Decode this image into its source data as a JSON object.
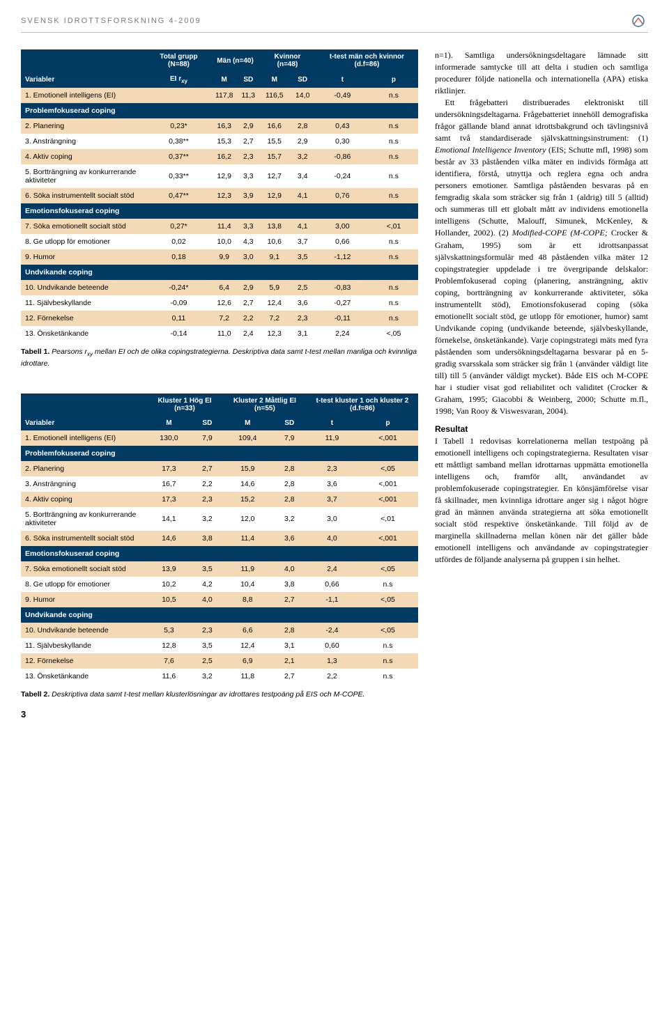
{
  "header": {
    "title": "SVENSK IDROTTSFORSKNING 4-2009"
  },
  "colors": {
    "header_bg": "#003a63",
    "alt_row": "#f3d9b6",
    "text": "#000000",
    "header_text_grey": "#777777"
  },
  "table1": {
    "top_headers": [
      "Total grupp (N=88)",
      "Män (n=40)",
      "Kvinnor (n=48)",
      "t-test män och kvinnor (d.f=86)"
    ],
    "var_header": "Variabler",
    "sub_headers": [
      "EI r",
      "M",
      "SD",
      "M",
      "SD",
      "t",
      "p"
    ],
    "sub_ei": "xy",
    "rows": [
      {
        "type": "data",
        "label": "1. Emotionell intelligens (EI)",
        "cells": [
          "",
          "117,8",
          "11,3",
          "116,5",
          "14,0",
          "-0,49",
          "n.s"
        ]
      },
      {
        "type": "section",
        "label": "Problemfokuserad coping"
      },
      {
        "type": "data",
        "label": "2. Planering",
        "cells": [
          "0,23*",
          "16,3",
          "2,9",
          "16,6",
          "2,8",
          "0,43",
          "n.s"
        ]
      },
      {
        "type": "data",
        "label": "3. Ansträngning",
        "cells": [
          "0,38**",
          "15,3",
          "2,7",
          "15,5",
          "2,9",
          "0,30",
          "n.s"
        ]
      },
      {
        "type": "data",
        "label": "4. Aktiv coping",
        "cells": [
          "0,37**",
          "16,2",
          "2,3",
          "15,7",
          "3,2",
          "-0,86",
          "n.s"
        ]
      },
      {
        "type": "data",
        "label": "5. Bortträngning av konkurrerande aktiviteter",
        "cells": [
          "0,33**",
          "12,9",
          "3,3",
          "12,7",
          "3,4",
          "-0,24",
          "n.s"
        ]
      },
      {
        "type": "data",
        "label": "6. Söka instrumentellt socialt stöd",
        "cells": [
          "0,47**",
          "12,3",
          "3,9",
          "12,9",
          "4,1",
          "0,76",
          "n.s"
        ]
      },
      {
        "type": "section",
        "label": "Emotionsfokuserad coping"
      },
      {
        "type": "data",
        "label": "7. Söka emotionellt socialt stöd",
        "cells": [
          "0,27*",
          "11,4",
          "3,3",
          "13,8",
          "4,1",
          "3,00",
          "<,01"
        ]
      },
      {
        "type": "data",
        "label": "8. Ge utlopp för emotioner",
        "cells": [
          "0,02",
          "10,0",
          "4,3",
          "10,6",
          "3,7",
          "0,66",
          "n.s"
        ]
      },
      {
        "type": "data",
        "label": "9. Humor",
        "cells": [
          "0,18",
          "9,9",
          "3,0",
          "9,1",
          "3,5",
          "-1,12",
          "n.s"
        ]
      },
      {
        "type": "section",
        "label": "Undvikande coping"
      },
      {
        "type": "data",
        "label": "10. Undvikande beteende",
        "cells": [
          "-0,24*",
          "6,4",
          "2,9",
          "5,9",
          "2,5",
          "-0,83",
          "n.s"
        ]
      },
      {
        "type": "data",
        "label": "11. Självbeskyllande",
        "cells": [
          "-0,09",
          "12,6",
          "2,7",
          "12,4",
          "3,6",
          "-0,27",
          "n.s"
        ]
      },
      {
        "type": "data",
        "label": "12. Förnekelse",
        "cells": [
          "0,11",
          "7,2",
          "2,2",
          "7,2",
          "2,3",
          "-0,11",
          "n.s"
        ]
      },
      {
        "type": "data",
        "label": "13. Önsketänkande",
        "cells": [
          "-0,14",
          "11,0",
          "2,4",
          "12,3",
          "3,1",
          "2,24",
          "<,05"
        ]
      }
    ],
    "caption_bold": "Tabell 1.",
    "caption": "Pearsons rxy mellan EI och de olika copingstrategierna. Deskriptiva data samt t-test mellan manliga och kvinnliga idrottare."
  },
  "table2": {
    "top_headers": [
      "Kluster 1 Hög EI (n=33)",
      "Kluster 2 Måttlig EI (n=55)",
      "t-test kluster 1 och kluster 2 (d.f=86)"
    ],
    "var_header": "Variabler",
    "sub_headers": [
      "M",
      "SD",
      "M",
      "SD",
      "t",
      "p"
    ],
    "rows": [
      {
        "type": "data",
        "label": "1. Emotionell intelligens (EI)",
        "cells": [
          "130,0",
          "7,9",
          "109,4",
          "7,9",
          "11,9",
          "<,001"
        ]
      },
      {
        "type": "section",
        "label": "Problemfokuserad coping"
      },
      {
        "type": "data",
        "label": "2. Planering",
        "cells": [
          "17,3",
          "2,7",
          "15,9",
          "2,8",
          "2,3",
          "<,05"
        ]
      },
      {
        "type": "data",
        "label": "3. Ansträngning",
        "cells": [
          "16,7",
          "2,2",
          "14,6",
          "2,8",
          "3,6",
          "<,001"
        ]
      },
      {
        "type": "data",
        "label": "4. Aktiv coping",
        "cells": [
          "17,3",
          "2,3",
          "15,2",
          "2,8",
          "3,7",
          "<,001"
        ]
      },
      {
        "type": "data",
        "label": "5. Bortträngning av konkurrerande aktiviteter",
        "cells": [
          "14,1",
          "3,2",
          "12,0",
          "3,2",
          "3,0",
          "<,01"
        ]
      },
      {
        "type": "data",
        "label": "6. Söka instrumentellt socialt stöd",
        "cells": [
          "14,6",
          "3,8",
          "11,4",
          "3,6",
          "4,0",
          "<,001"
        ]
      },
      {
        "type": "section",
        "label": "Emotionsfokuserad coping"
      },
      {
        "type": "data",
        "label": "7. Söka emotionellt socialt stöd",
        "cells": [
          "13,9",
          "3,5",
          "11,9",
          "4,0",
          "2,4",
          "<,05"
        ]
      },
      {
        "type": "data",
        "label": "8. Ge utlopp för emotioner",
        "cells": [
          "10,2",
          "4,2",
          "10,4",
          "3,8",
          "0,66",
          "n.s"
        ]
      },
      {
        "type": "data",
        "label": "9. Humor",
        "cells": [
          "10,5",
          "4,0",
          "8,8",
          "2,7",
          "-1,1",
          "<,05"
        ]
      },
      {
        "type": "section",
        "label": "Undvikande coping"
      },
      {
        "type": "data",
        "label": "10. Undvikande beteende",
        "cells": [
          "5,3",
          "2,3",
          "6,6",
          "2,8",
          "-2,4",
          "<,05"
        ]
      },
      {
        "type": "data",
        "label": "11. Självbeskyllande",
        "cells": [
          "12,8",
          "3,5",
          "12,4",
          "3,1",
          "0,60",
          "n.s"
        ]
      },
      {
        "type": "data",
        "label": "12. Förnekelse",
        "cells": [
          "7,6",
          "2,5",
          "6,9",
          "2,1",
          "1,3",
          "n.s"
        ]
      },
      {
        "type": "data",
        "label": "13. Önsketänkande",
        "cells": [
          "11,6",
          "3,2",
          "11,8",
          "2,7",
          "2,2",
          "n.s"
        ]
      }
    ],
    "caption_bold": "Tabell 2.",
    "caption": "Deskriptiva data samt t-test mellan klusterlösningar av idrottares testpoäng på EIS och M-COPE."
  },
  "body_text": {
    "p1": "n=1). Samtliga undersökningsdeltagare lämnade sitt informerade samtycke till att delta i studien och samtliga procedurer följde nationella och internationella (APA) etiska riktlinjer.",
    "p2": "Ett frågebatteri distribuerades elektroniskt till undersökningsdeltagarna. Frågebatteriet innehöll demografiska frågor gällande bland annat idrottsbakgrund och tävlingsnivå samt två standardiserade självskattningsinstrument: (1) Emotional Intelligence Inventory (EIS; Schutte mfl, 1998) som består av 33 påståenden vilka mäter en individs förmåga att identifiera, förstå, utnyttja och reglera egna och andra personers emotioner. Samtliga påståenden besvaras på en femgradig skala som sträcker sig från 1 (aldrig) till 5 (alltid) och summeras till ett globalt mått av individens emotionella intelligens (Schutte, Malouff, Simunek, McKenley, & Hollander, 2002). (2) Modified-COPE (M-COPE; Crocker & Graham, 1995) som är ett idrottsanpassat självskattningsformulär med 48 påståenden vilka mäter 12 copingstrategier uppdelade i tre övergripande delskalor: Problemfokuserad coping (planering, ansträngning, aktiv coping, bortträngning av konkurrerande aktiviteter, söka instrumentellt stöd), Emotionsfokuserad coping (söka emotionellt socialt stöd, ge utlopp för emotioner, humor) samt Undvikande coping (undvikande beteende, självbeskyllande, förnekelse, önsketänkande). Varje copingstrategi mäts med fyra påståenden som undersökningsdeltagarna besvarar på en 5-gradig svarsskala som sträcker sig från 1 (använder väldigt lite till) till 5 (använder väldigt mycket). Både EIS och M-COPE har i studier visat god reliabilitet och validitet (Crocker & Graham, 1995; Giacobbi & Weinberg, 2000; Schutte m.fl., 1998; Van Rooy & Viswesvaran, 2004).",
    "h_resultat": "Resultat",
    "p3": "I Tabell 1 redovisas korrelationerna mellan testpoäng på emotionell intelligens och copingstrategierna. Resultaten visar ett måttligt samband mellan idrottarnas uppmätta emotionella intelligens och, framför allt, användandet av problemfokuserade copingstrategier. En könsjämförelse visar få skillnader, men kvinnliga idrottare anger sig i något högre grad än männen använda strategierna att söka emotionellt socialt stöd respektive önsketänkande. Till följd av de marginella skillnaderna mellan könen när det gäller både emotionell intelligens och användande av copingstrategier utfördes de följande analyserna på gruppen i sin helhet."
  },
  "page_number": "3"
}
